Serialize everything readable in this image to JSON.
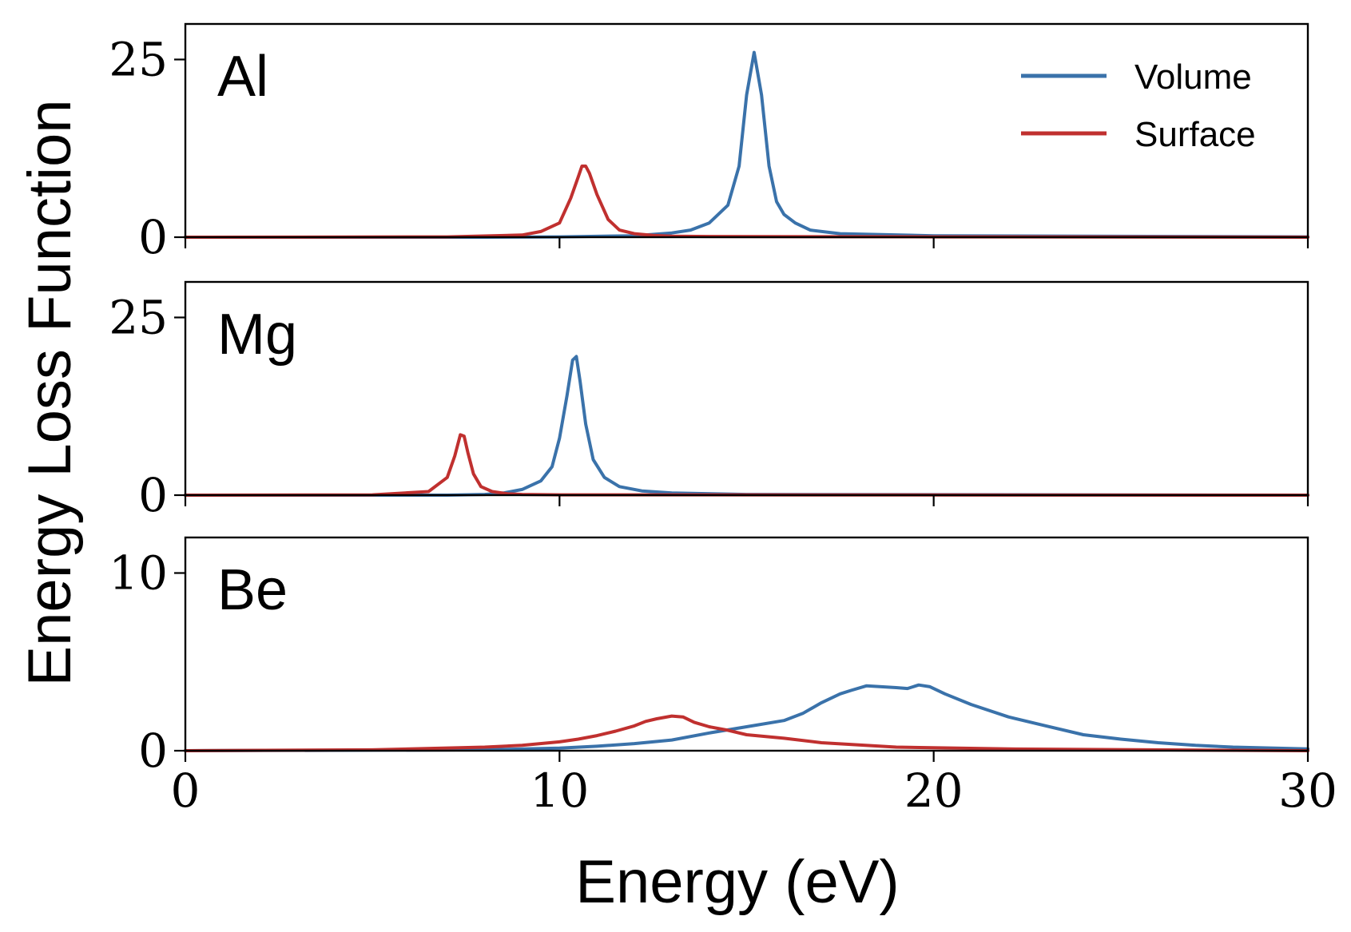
{
  "chart_data": {
    "type": "line",
    "xlabel": "Energy (eV)",
    "ylabel": "Energy Loss Function",
    "xlim": [
      0,
      30
    ],
    "x_ticks": [
      "0",
      "10",
      "20",
      "30"
    ],
    "grid": false,
    "legend": {
      "placement": "top-right of first panel",
      "entries": [
        {
          "name": "Volume",
          "color": "#3a72aa"
        },
        {
          "name": "Surface",
          "color": "#c0302f"
        }
      ]
    },
    "panels": [
      {
        "label": "Al",
        "ylim": [
          0,
          30
        ],
        "y_ticks": [
          "0",
          "25"
        ],
        "series": [
          {
            "name": "Volume",
            "color": "#3a72aa",
            "x": [
              0,
              8,
              10,
              12,
              13,
              13.5,
              14,
              14.5,
              14.8,
              15.0,
              15.2,
              15.4,
              15.6,
              15.8,
              16.0,
              16.3,
              16.7,
              17.5,
              20,
              30
            ],
            "y": [
              0,
              0,
              0.05,
              0.2,
              0.6,
              1.0,
              2.0,
              4.5,
              10,
              20,
              26,
              20,
              10,
              5,
              3.2,
              2.0,
              1.0,
              0.5,
              0.2,
              0.05
            ]
          },
          {
            "name": "Surface",
            "color": "#c0302f",
            "x": [
              0,
              7,
              9,
              9.5,
              10.0,
              10.3,
              10.5,
              10.6,
              10.7,
              10.8,
              11.0,
              11.3,
              11.6,
              12.0,
              12.5,
              13,
              14,
              20,
              30
            ],
            "y": [
              0,
              0.05,
              0.3,
              0.8,
              2.0,
              5.5,
              8.5,
              10,
              10,
              9,
              6,
              2.5,
              1.0,
              0.5,
              0.25,
              0.15,
              0.1,
              0.05,
              0
            ]
          }
        ]
      },
      {
        "label": "Mg",
        "ylim": [
          0,
          30
        ],
        "y_ticks": [
          "0",
          "25"
        ],
        "series": [
          {
            "name": "Volume",
            "color": "#3a72aa",
            "x": [
              0,
              7,
              8,
              8.5,
              9.0,
              9.5,
              9.8,
              10.0,
              10.2,
              10.35,
              10.45,
              10.55,
              10.7,
              10.9,
              11.2,
              11.6,
              12.2,
              13,
              15,
              30
            ],
            "y": [
              0,
              0,
              0.1,
              0.3,
              0.8,
              2.0,
              4.0,
              8.0,
              14,
              19,
              19.5,
              16,
              10,
              5,
              2.5,
              1.2,
              0.6,
              0.3,
              0.1,
              0
            ]
          },
          {
            "name": "Surface",
            "color": "#c0302f",
            "x": [
              0,
              5,
              6.5,
              7.0,
              7.2,
              7.35,
              7.45,
              7.55,
              7.7,
              7.9,
              8.2,
              8.6,
              9,
              10,
              30
            ],
            "y": [
              0,
              0.05,
              0.5,
              2.5,
              5.5,
              8.5,
              8.3,
              6,
              3,
              1.2,
              0.5,
              0.2,
              0.1,
              0.05,
              0
            ]
          }
        ]
      },
      {
        "label": "Be",
        "ylim": [
          0,
          12
        ],
        "y_ticks": [
          "0",
          "10"
        ],
        "series": [
          {
            "name": "Volume",
            "color": "#3a72aa",
            "x": [
              0,
              8,
              10,
              11,
              12,
              13,
              14,
              15,
              16,
              16.5,
              17,
              17.5,
              17.8,
              18.2,
              18.6,
              19.0,
              19.3,
              19.6,
              19.9,
              20.3,
              21,
              22,
              23,
              24,
              25,
              26,
              27,
              28,
              30
            ],
            "y": [
              0,
              0.05,
              0.15,
              0.25,
              0.4,
              0.6,
              1.0,
              1.35,
              1.7,
              2.1,
              2.7,
              3.2,
              3.4,
              3.65,
              3.6,
              3.55,
              3.5,
              3.7,
              3.6,
              3.2,
              2.6,
              1.9,
              1.4,
              0.9,
              0.65,
              0.45,
              0.3,
              0.2,
              0.1
            ]
          },
          {
            "name": "Surface",
            "color": "#c0302f",
            "x": [
              0,
              5,
              8,
              9,
              10,
              10.5,
              11,
              11.5,
              12,
              12.3,
              12.6,
              13.0,
              13.3,
              13.6,
              14.0,
              14.5,
              15,
              16,
              17,
              19,
              22,
              30
            ],
            "y": [
              0,
              0.05,
              0.2,
              0.3,
              0.5,
              0.65,
              0.85,
              1.1,
              1.4,
              1.65,
              1.8,
              1.95,
              1.9,
              1.6,
              1.35,
              1.15,
              0.9,
              0.7,
              0.45,
              0.2,
              0.1,
              0
            ]
          }
        ]
      }
    ]
  }
}
